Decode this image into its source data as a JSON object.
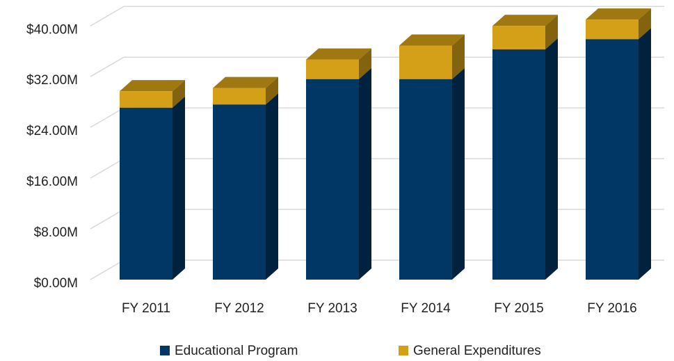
{
  "chart_data": {
    "type": "bar3d_stacked",
    "categories": [
      "FY 2011",
      "FY 2012",
      "FY 2013",
      "FY 2014",
      "FY 2015",
      "FY 2016"
    ],
    "series": [
      {
        "name": "Educational Program",
        "color": "#003764",
        "values": [
          27.1,
          27.6,
          31.6,
          31.6,
          36.3,
          37.9
        ]
      },
      {
        "name": "General Expenditures",
        "color": "#d4a017",
        "values": [
          2.6,
          2.6,
          3.1,
          5.3,
          3.7,
          3.1
        ]
      }
    ],
    "ylim": [
      0,
      42
    ],
    "yticks": [
      {
        "value": 0,
        "label": "$0.00M"
      },
      {
        "value": 8,
        "label": "$8.00M"
      },
      {
        "value": 16,
        "label": "$16.00M"
      },
      {
        "value": 24,
        "label": "$24.00M"
      },
      {
        "value": 32,
        "label": "$32.00M"
      },
      {
        "value": 40,
        "label": "$40.00M"
      }
    ],
    "grid": true,
    "legend": "bottom"
  }
}
